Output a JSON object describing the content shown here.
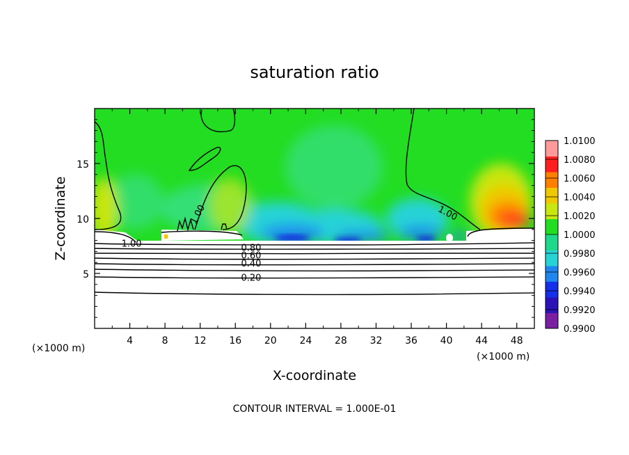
{
  "chart_data": {
    "type": "heatmap",
    "title": "saturation ratio",
    "xlabel": "X-coordinate",
    "ylabel": "Z-coordinate",
    "x_unit": "(×1000 m)",
    "x_unit_right": "(×1000 m)",
    "xlim": [
      0,
      50
    ],
    "ylim": [
      0,
      20
    ],
    "xticks": [
      4,
      8,
      12,
      16,
      20,
      24,
      28,
      32,
      36,
      40,
      44,
      48
    ],
    "yticks": [
      5,
      10,
      15
    ],
    "colorbar": {
      "min": 0.99,
      "max": 1.01,
      "levels": [
        "0.9900",
        "0.9920",
        "0.9940",
        "0.9960",
        "0.9980",
        "1.0000",
        "1.0020",
        "1.0040",
        "1.0060",
        "1.0080",
        "1.0100"
      ],
      "colors": [
        "#7a1fa2",
        "#2a12b8",
        "#1530e8",
        "#1f86f0",
        "#28d3d6",
        "#1fd88a",
        "#22dd22",
        "#c8e60f",
        "#f0c800",
        "#ff7f00",
        "#ff1f1f",
        "#ff9a9a"
      ]
    },
    "contour_labels": [
      {
        "text": "1.00",
        "x": 12,
        "z": 10.5
      },
      {
        "text": "1.00",
        "x": 40,
        "z": 10.5
      },
      {
        "text": "1.00",
        "x": 4.2,
        "z": 7.7
      },
      {
        "text": "0.80",
        "x": 17.8,
        "z": 7.3
      },
      {
        "text": "0.60",
        "x": 17.8,
        "z": 6.6
      },
      {
        "text": "0.40",
        "x": 17.8,
        "z": 5.9
      },
      {
        "text": "0.20",
        "x": 17.8,
        "z": 4.6
      }
    ],
    "footer": "CONTOUR INTERVAL = 1.000E-01"
  }
}
